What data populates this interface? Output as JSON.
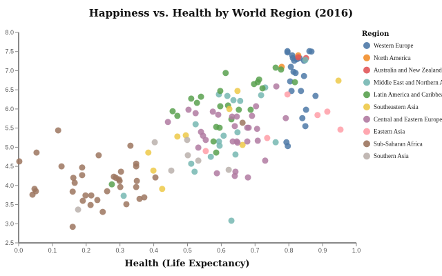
{
  "chart_data": {
    "type": "scatter",
    "title": "Happiness vs. Health by World Region (2016)",
    "xlabel": "Health (Life Expectancy)",
    "ylabel": "",
    "xlim": [
      0,
      1
    ],
    "ylim": [
      2.5,
      8.0
    ],
    "xticks": [
      "0.0",
      "0.1",
      "0.2",
      "0.3",
      "0.4",
      "0.5",
      "0.6",
      "0.7",
      "0.8",
      "0.9",
      "1.0"
    ],
    "yticks": [
      "2.5",
      "3.0",
      "3.5",
      "4.0",
      "4.5",
      "5.0",
      "5.5",
      "6.0",
      "6.5",
      "7.0",
      "7.5",
      "8.0"
    ],
    "legend_title": "Region",
    "legend_position": "right",
    "series": [
      {
        "name": "Western Europe",
        "color": "#4e79a7",
        "points": [
          [
            0.796,
            7.51
          ],
          [
            0.796,
            7.48
          ],
          [
            0.81,
            7.4
          ],
          [
            0.812,
            7.33
          ],
          [
            0.824,
            7.3
          ],
          [
            0.832,
            7.33
          ],
          [
            0.816,
            7.26
          ],
          [
            0.845,
            7.26
          ],
          [
            0.861,
            7.51
          ],
          [
            0.867,
            7.5
          ],
          [
            0.806,
            7.1
          ],
          [
            0.814,
            6.97
          ],
          [
            0.82,
            6.94
          ],
          [
            0.804,
            6.72
          ],
          [
            0.845,
            6.86
          ],
          [
            0.836,
            6.47
          ],
          [
            0.808,
            6.47
          ],
          [
            0.879,
            6.34
          ],
          [
            0.851,
            5.98
          ],
          [
            0.84,
            5.76
          ],
          [
            0.849,
            5.55
          ],
          [
            0.793,
            5.13
          ],
          [
            0.797,
            5.03
          ]
        ]
      },
      {
        "name": "North America",
        "color": "#f28e2b",
        "points": [
          [
            0.828,
            7.4
          ],
          [
            0.779,
            7.1
          ]
        ]
      },
      {
        "name": "Australia and New Zealand",
        "color": "#e15759",
        "points": [
          [
            0.851,
            7.33
          ],
          [
            0.828,
            7.35
          ]
        ]
      },
      {
        "name": "Middle East and Northern Africa",
        "color": "#76b7b2",
        "points": [
          [
            0.849,
            7.28
          ],
          [
            0.73,
            6.56
          ],
          [
            0.718,
            6.36
          ],
          [
            0.593,
            6.38
          ],
          [
            0.618,
            6.34
          ],
          [
            0.636,
            6.23
          ],
          [
            0.656,
            6.21
          ],
          [
            0.524,
            5.6
          ],
          [
            0.607,
            5.3
          ],
          [
            0.648,
            5.39
          ],
          [
            0.593,
            5.15
          ],
          [
            0.595,
            5.04
          ],
          [
            0.642,
            4.81
          ],
          [
            0.569,
            4.75
          ],
          [
            0.511,
            4.57
          ],
          [
            0.521,
            4.36
          ],
          [
            0.761,
            5.13
          ],
          [
            0.63,
            3.08
          ],
          [
            0.311,
            3.73
          ]
        ]
      },
      {
        "name": "Latin America and Caribbean",
        "color": "#59a14f",
        "points": [
          [
            0.613,
            6.94
          ],
          [
            0.761,
            7.08
          ],
          [
            0.777,
            7.03
          ],
          [
            0.712,
            6.77
          ],
          [
            0.708,
            6.7
          ],
          [
            0.697,
            6.65
          ],
          [
            0.722,
            6.54
          ],
          [
            0.597,
            6.47
          ],
          [
            0.511,
            6.27
          ],
          [
            0.54,
            6.32
          ],
          [
            0.528,
            6.16
          ],
          [
            0.456,
            5.94
          ],
          [
            0.47,
            5.82
          ],
          [
            0.597,
            6.07
          ],
          [
            0.62,
            6.09
          ],
          [
            0.652,
            5.98
          ],
          [
            0.687,
            5.98
          ],
          [
            0.63,
            5.73
          ],
          [
            0.585,
            5.53
          ],
          [
            0.595,
            5.51
          ],
          [
            0.577,
            5.15
          ],
          [
            0.585,
            4.86
          ],
          [
            0.818,
            6.7
          ],
          [
            0.276,
            4.03
          ]
        ]
      },
      {
        "name": "Southeastern Asia",
        "color": "#edc948",
        "points": [
          [
            0.947,
            6.74
          ],
          [
            0.648,
            6.47
          ],
          [
            0.624,
            6.0
          ],
          [
            0.47,
            5.28
          ],
          [
            0.495,
            5.31
          ],
          [
            0.663,
            5.06
          ],
          [
            0.384,
            4.86
          ],
          [
            0.399,
            4.39
          ],
          [
            0.425,
            3.91
          ]
        ]
      },
      {
        "name": "Central and Eastern Europe",
        "color": "#b07aa1",
        "points": [
          [
            0.763,
            6.59
          ],
          [
            0.703,
            6.07
          ],
          [
            0.691,
            5.82
          ],
          [
            0.646,
            5.8
          ],
          [
            0.632,
            5.8
          ],
          [
            0.591,
            5.85
          ],
          [
            0.575,
            5.93
          ],
          [
            0.524,
            5.89
          ],
          [
            0.503,
            5.98
          ],
          [
            0.442,
            5.66
          ],
          [
            0.791,
            5.76
          ],
          [
            0.64,
            5.55
          ],
          [
            0.677,
            5.51
          ],
          [
            0.681,
            5.51
          ],
          [
            0.706,
            5.48
          ],
          [
            0.54,
            5.4
          ],
          [
            0.546,
            5.3
          ],
          [
            0.554,
            5.19
          ],
          [
            0.634,
            5.15
          ],
          [
            0.646,
            5.15
          ],
          [
            0.648,
            5.12
          ],
          [
            0.677,
            5.15
          ],
          [
            0.708,
            5.17
          ],
          [
            0.532,
            4.99
          ],
          [
            0.73,
            4.65
          ],
          [
            0.587,
            4.32
          ],
          [
            0.642,
            4.36
          ],
          [
            0.64,
            4.25
          ],
          [
            0.679,
            4.21
          ]
        ]
      },
      {
        "name": "Eastern Asia",
        "color": "#ff9da7",
        "points": [
          [
            0.796,
            6.38
          ],
          [
            0.885,
            5.84
          ],
          [
            0.914,
            5.93
          ],
          [
            0.953,
            5.46
          ],
          [
            0.554,
            4.9
          ],
          [
            0.736,
            5.24
          ]
        ]
      },
      {
        "name": "Sub-Saharan Africa",
        "color": "#9c755f",
        "points": [
          [
            0.117,
            5.44
          ],
          [
            0.053,
            4.86
          ],
          [
            0.002,
            4.63
          ],
          [
            0.127,
            4.5
          ],
          [
            0.188,
            4.47
          ],
          [
            0.188,
            4.27
          ],
          [
            0.162,
            4.2
          ],
          [
            0.166,
            4.07
          ],
          [
            0.16,
            3.84
          ],
          [
            0.047,
            3.91
          ],
          [
            0.041,
            3.76
          ],
          [
            0.051,
            3.85
          ],
          [
            0.19,
            3.6
          ],
          [
            0.198,
            3.74
          ],
          [
            0.215,
            3.74
          ],
          [
            0.213,
            3.49
          ],
          [
            0.233,
            3.62
          ],
          [
            0.249,
            3.31
          ],
          [
            0.16,
            2.92
          ],
          [
            0.237,
            4.79
          ],
          [
            0.262,
            3.85
          ],
          [
            0.282,
            4.23
          ],
          [
            0.288,
            4.2
          ],
          [
            0.297,
            4.16
          ],
          [
            0.303,
            4.36
          ],
          [
            0.299,
            4.12
          ],
          [
            0.301,
            3.96
          ],
          [
            0.319,
            3.51
          ],
          [
            0.331,
            5.04
          ],
          [
            0.348,
            4.57
          ],
          [
            0.348,
            4.5
          ],
          [
            0.35,
            4.12
          ],
          [
            0.348,
            3.96
          ],
          [
            0.358,
            3.65
          ],
          [
            0.372,
            3.69
          ],
          [
            0.405,
            4.21
          ],
          [
            0.663,
            5.64
          ]
        ]
      },
      {
        "name": "Southern Asia",
        "color": "#bab0ac",
        "points": [
          [
            0.176,
            3.37
          ],
          [
            0.403,
            5.13
          ],
          [
            0.452,
            4.39
          ],
          [
            0.499,
            5.19
          ],
          [
            0.501,
            4.79
          ],
          [
            0.532,
            4.65
          ],
          [
            0.622,
            4.41
          ]
        ]
      }
    ]
  }
}
